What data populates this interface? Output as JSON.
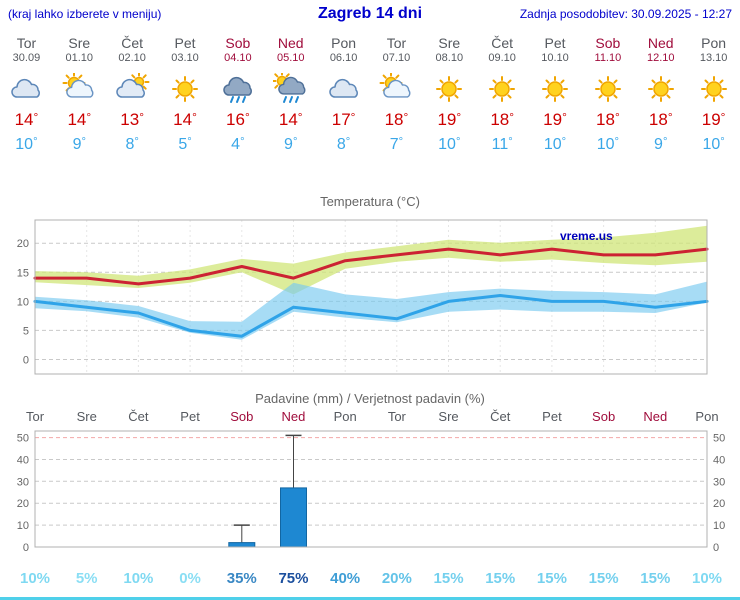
{
  "header": {
    "menu_hint": "(kraj lahko izberete v meniju)",
    "title": "Zagreb 14 dni",
    "last_update": "Zadnja posodobitev: 30.09.2025 - 12:27"
  },
  "watermark": "vreme.us",
  "colors": {
    "header_text": "#0000cc",
    "weekday": "#55595f",
    "weekend": "#a00d3c",
    "temp_max": "#cc0000",
    "temp_min": "#3aa7e8",
    "chart_title": "#666666",
    "bar_fill": "#1e88d2",
    "bar_edge": "#1266a2",
    "bottom_bar": "#4fd0ea",
    "watermark": "#0000bb"
  },
  "days": [
    {
      "name": "Tor",
      "date": "30.09",
      "weekend": false,
      "icon": "cloudy",
      "temp_max": 14,
      "temp_min": 10
    },
    {
      "name": "Sre",
      "date": "01.10",
      "weekend": false,
      "icon": "partly-cloudy",
      "temp_max": 14,
      "temp_min": 9
    },
    {
      "name": "Čet",
      "date": "02.10",
      "weekend": false,
      "icon": "mostly-cloudy",
      "temp_max": 13,
      "temp_min": 8
    },
    {
      "name": "Pet",
      "date": "03.10",
      "weekend": false,
      "icon": "sunny",
      "temp_max": 14,
      "temp_min": 5
    },
    {
      "name": "Sob",
      "date": "04.10",
      "weekend": true,
      "icon": "rain",
      "temp_max": 16,
      "temp_min": 4
    },
    {
      "name": "Ned",
      "date": "05.10",
      "weekend": true,
      "icon": "rain-sun",
      "temp_max": 14,
      "temp_min": 9
    },
    {
      "name": "Pon",
      "date": "06.10",
      "weekend": false,
      "icon": "cloudy",
      "temp_max": 17,
      "temp_min": 8
    },
    {
      "name": "Tor",
      "date": "07.10",
      "weekend": false,
      "icon": "partly-cloudy",
      "temp_max": 18,
      "temp_min": 7
    },
    {
      "name": "Sre",
      "date": "08.10",
      "weekend": false,
      "icon": "sunny",
      "temp_max": 19,
      "temp_min": 10
    },
    {
      "name": "Čet",
      "date": "09.10",
      "weekend": false,
      "icon": "sunny",
      "temp_max": 18,
      "temp_min": 11
    },
    {
      "name": "Pet",
      "date": "10.10",
      "weekend": false,
      "icon": "sunny",
      "temp_max": 19,
      "temp_min": 10
    },
    {
      "name": "Sob",
      "date": "11.10",
      "weekend": true,
      "icon": "sunny",
      "temp_max": 18,
      "temp_min": 10
    },
    {
      "name": "Ned",
      "date": "12.10",
      "weekend": true,
      "icon": "sunny",
      "temp_max": 18,
      "temp_min": 9
    },
    {
      "name": "Pon",
      "date": "13.10",
      "weekend": false,
      "icon": "sunny",
      "temp_max": 19,
      "temp_min": 10
    }
  ],
  "chart_data": [
    {
      "type": "area",
      "title": "Temperatura (°C)",
      "categories": [
        "Tor 30.09",
        "Sre 01.10",
        "Čet 02.10",
        "Pet 03.10",
        "Sob 04.10",
        "Ned 05.10",
        "Pon 06.10",
        "Tor 07.10",
        "Sre 08.10",
        "Čet 09.10",
        "Pet 10.10",
        "Sob 11.10",
        "Ned 12.10",
        "Pon 13.10"
      ],
      "series": [
        {
          "name": "temp-max",
          "values": [
            14,
            14,
            13,
            14,
            16,
            14,
            17,
            18,
            19,
            18,
            19,
            18,
            18,
            19
          ],
          "color": "#cc2233"
        },
        {
          "name": "temp-min",
          "values": [
            10,
            9,
            8,
            5,
            4,
            9,
            8,
            7,
            10,
            11,
            10,
            10,
            9,
            10
          ],
          "color": "#2fa3e8"
        }
      ],
      "bands": [
        {
          "name": "temp-max-range",
          "upper": [
            15.2,
            15,
            14.4,
            15.5,
            17.3,
            16.5,
            18.4,
            19.5,
            20.6,
            20.1,
            20.6,
            21,
            21.8,
            23
          ],
          "lower": [
            13.3,
            12.8,
            12.3,
            13.2,
            15,
            11.2,
            15.6,
            16.8,
            17.5,
            16.8,
            17.2,
            16.6,
            16.2,
            16.8
          ],
          "fill": "rgba(208,229,120,0.75)"
        },
        {
          "name": "temp-min-range",
          "upper": [
            10.8,
            10.2,
            9.2,
            6.6,
            6.5,
            13.2,
            11.2,
            10.4,
            11.6,
            12.2,
            11.8,
            11.6,
            11.2,
            13.4
          ],
          "lower": [
            8.8,
            8.3,
            7.2,
            4.6,
            3.4,
            8.2,
            7.2,
            6.4,
            8.2,
            8.6,
            8.2,
            8.2,
            8,
            9.8
          ],
          "fill": "rgba(120,202,240,0.65)"
        }
      ],
      "ylim": [
        -2.5,
        24
      ],
      "yticks": [
        0,
        5,
        10,
        15,
        20
      ],
      "grid": true,
      "legend": false
    },
    {
      "type": "bar",
      "title": "Padavine (mm) / Verjetnost padavin (%)",
      "categories": [
        "Tor",
        "Sre",
        "Čet",
        "Pet",
        "Sob",
        "Ned",
        "Pon",
        "Tor",
        "Sre",
        "Čet",
        "Pet",
        "Sob",
        "Ned",
        "Pon"
      ],
      "weekend_flags": [
        false,
        false,
        false,
        false,
        true,
        true,
        false,
        false,
        false,
        false,
        false,
        true,
        true,
        false
      ],
      "precip_mm": [
        0,
        0,
        0,
        0,
        2,
        27,
        0,
        0,
        0,
        0,
        0,
        0,
        0,
        0
      ],
      "precip_max_mm": [
        0,
        0,
        0,
        0,
        10,
        51,
        0,
        0,
        0,
        0,
        0,
        0,
        0,
        0
      ],
      "probabilities_pct": [
        10,
        5,
        10,
        0,
        35,
        75,
        40,
        20,
        15,
        15,
        15,
        15,
        15,
        10
      ],
      "prob_colors": [
        "#7fd9f2",
        "#8adef4",
        "#7fd9f2",
        "#8adef4",
        "#3a88c4",
        "#1b4f9e",
        "#3f9ed6",
        "#63c3e8",
        "#74d0ee",
        "#74d0ee",
        "#74d0ee",
        "#74d0ee",
        "#74d0ee",
        "#7fd9f2"
      ],
      "ylim": [
        0,
        53
      ],
      "yticks": [
        0,
        10,
        20,
        30,
        40,
        50
      ],
      "grid": true
    }
  ]
}
